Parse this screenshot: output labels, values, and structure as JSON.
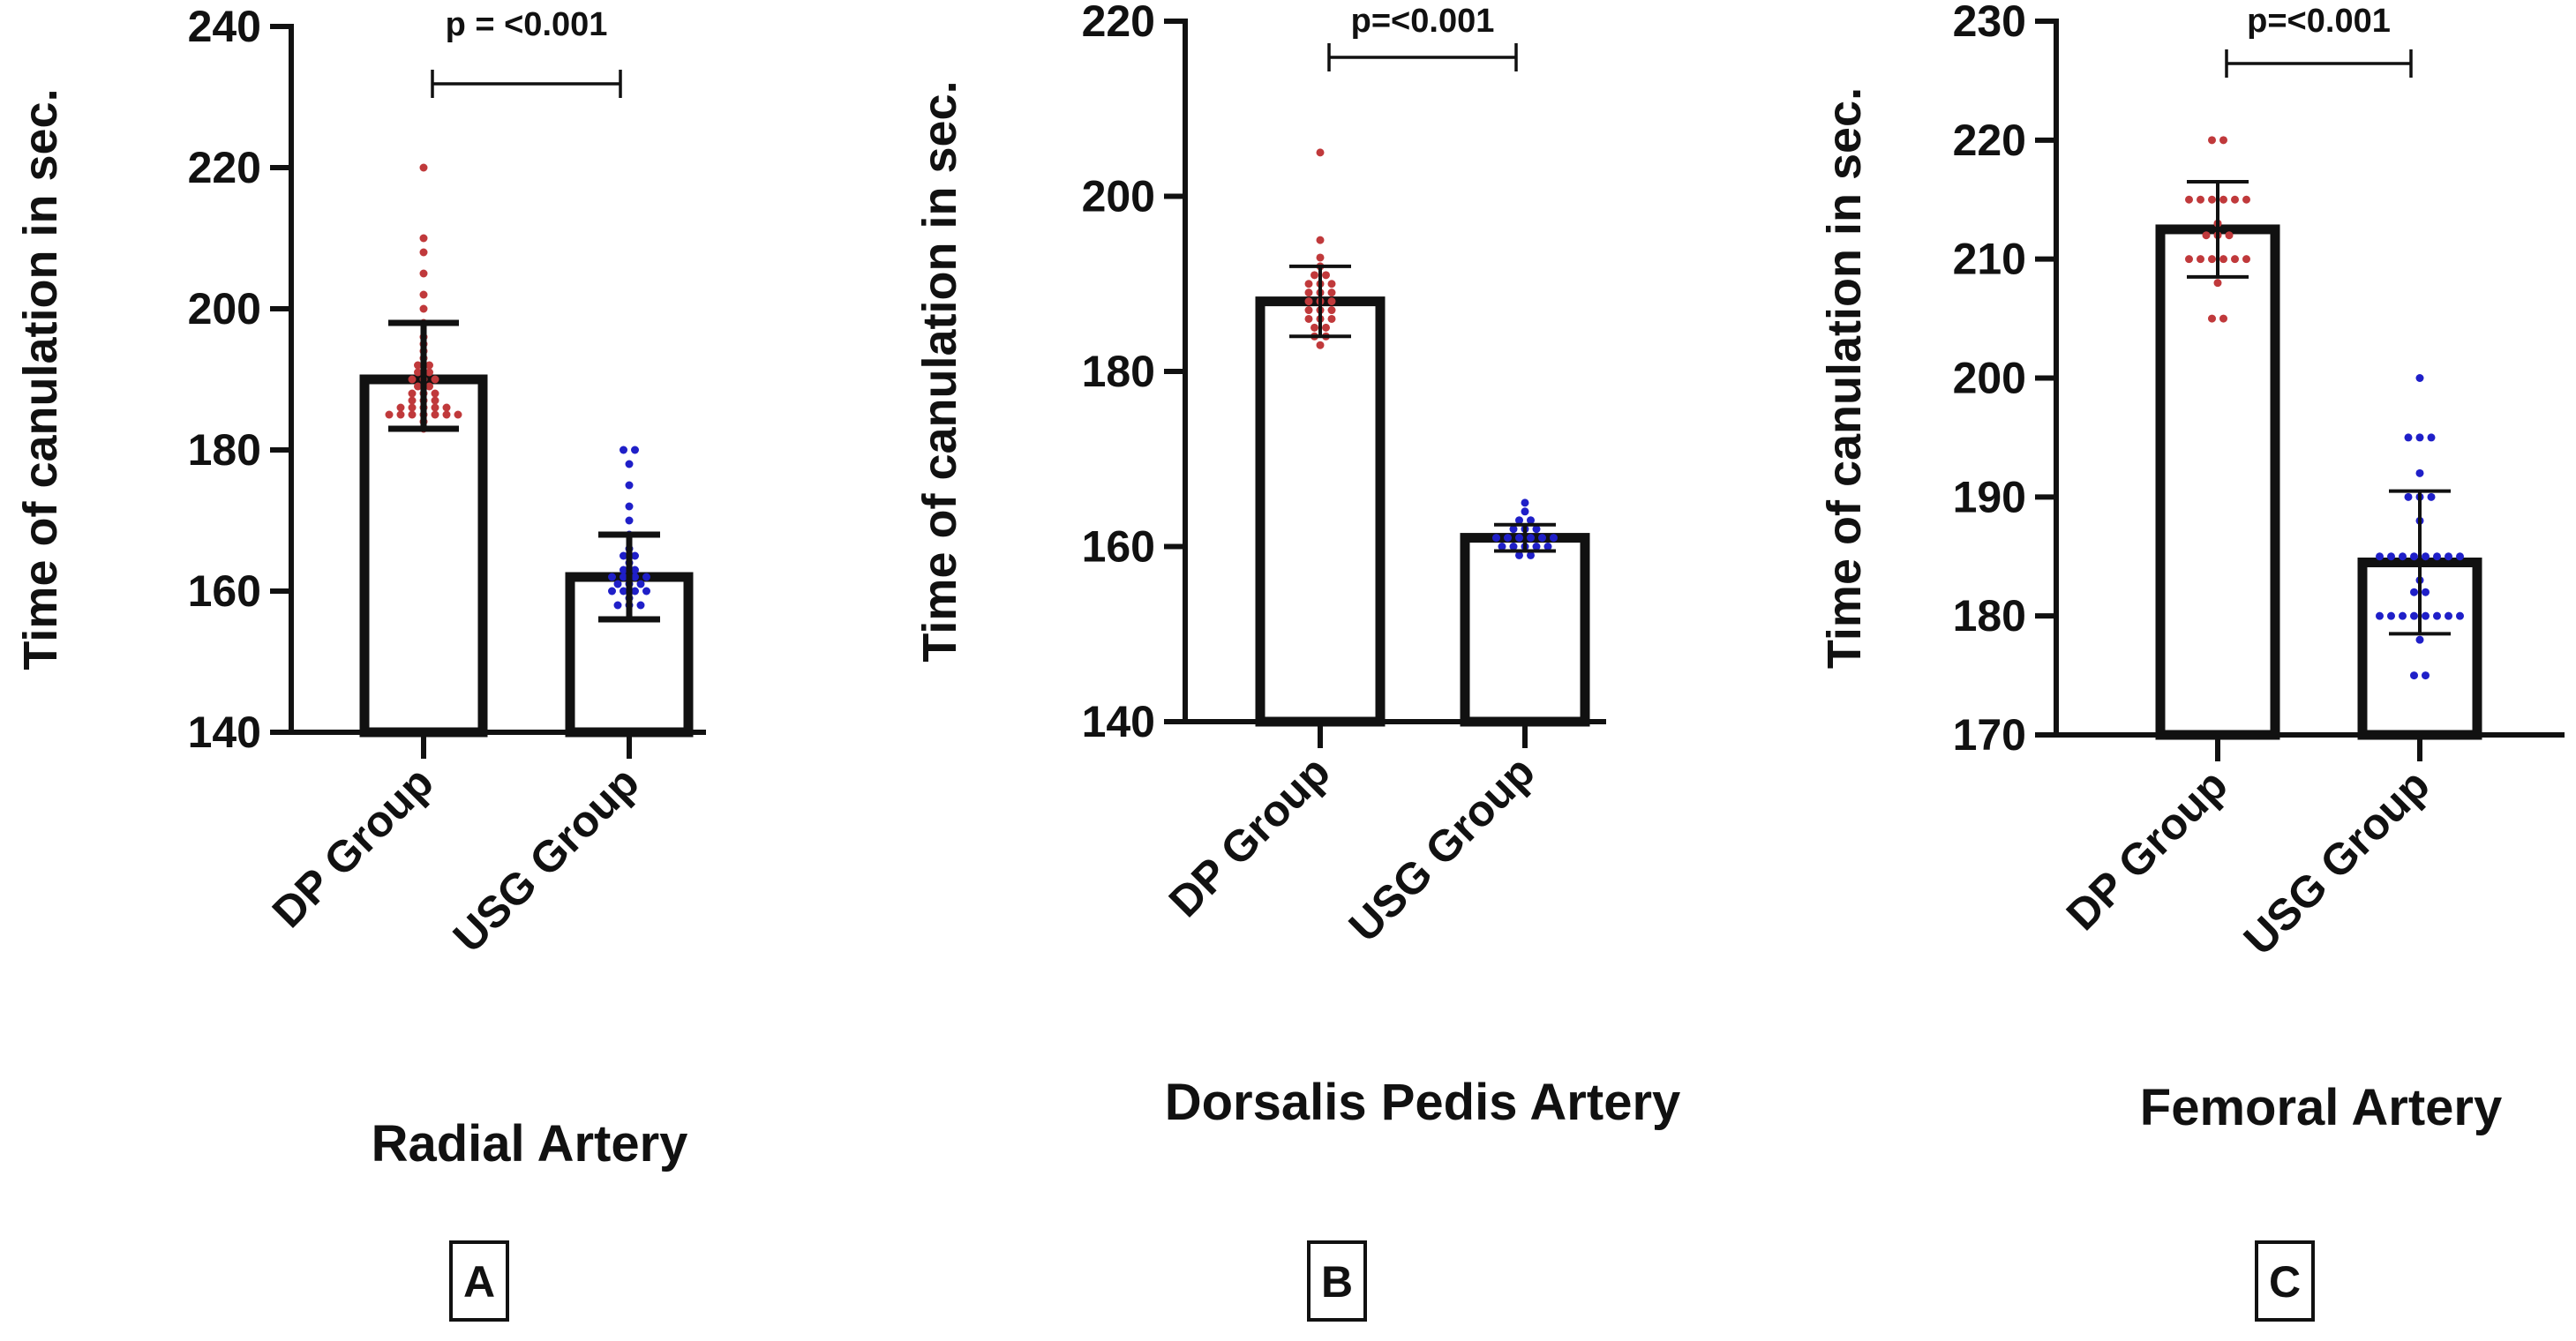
{
  "colors": {
    "axis": "#111111",
    "bar_fill": "#ffffff",
    "dp_points": "#c0393b",
    "usg_points": "#1f1fc8"
  },
  "chart_data": [
    {
      "type": "bar",
      "panel": "A",
      "title": "Radial Artery",
      "ylabel": "Time of canulation in sec.",
      "xlabel": "",
      "categories": [
        "DP Group",
        "USG Group"
      ],
      "ylim": [
        140,
        240
      ],
      "yticks": [
        140,
        160,
        180,
        200,
        220,
        240
      ],
      "means": [
        190,
        162
      ],
      "error": [
        [
          183,
          198
        ],
        [
          156,
          168
        ]
      ],
      "points": [
        [
          185,
          185,
          185,
          185,
          185,
          185,
          185,
          186,
          186,
          186,
          186,
          187,
          187,
          187,
          188,
          188,
          189,
          189,
          190,
          190,
          190,
          191,
          192,
          192,
          193,
          194,
          195,
          196,
          198,
          200,
          202,
          205,
          208,
          210,
          220,
          183,
          184,
          186,
          188,
          191
        ],
        [
          158,
          158,
          159,
          160,
          160,
          160,
          161,
          161,
          161,
          162,
          162,
          162,
          163,
          163,
          164,
          165,
          165,
          166,
          168,
          170,
          172,
          175,
          178,
          180,
          180,
          158,
          160,
          162
        ]
      ],
      "comparison": {
        "label": "p = <0.001",
        "between": [
          0,
          1
        ]
      },
      "grid": false
    },
    {
      "type": "bar",
      "panel": "B",
      "title": "Dorsalis Pedis Artery",
      "ylabel": "Time of canulation in sec.",
      "xlabel": "",
      "categories": [
        "DP Group",
        "USG Group"
      ],
      "ylim": [
        140,
        220
      ],
      "yticks": [
        140,
        160,
        180,
        200,
        220
      ],
      "means": [
        188,
        161
      ],
      "error": [
        [
          184,
          192
        ],
        [
          159.5,
          162.5
        ]
      ],
      "points": [
        [
          183,
          184,
          184,
          185,
          185,
          186,
          186,
          186,
          187,
          187,
          187,
          188,
          188,
          188,
          189,
          189,
          189,
          190,
          190,
          190,
          191,
          191,
          192,
          193,
          195,
          205
        ],
        [
          159,
          159,
          160,
          160,
          160,
          160,
          161,
          161,
          161,
          161,
          161,
          162,
          162,
          162,
          163,
          163,
          164,
          165,
          160,
          161
        ]
      ],
      "comparison": {
        "label": "p=<0.001",
        "between": [
          0,
          1
        ]
      },
      "grid": false
    },
    {
      "type": "bar",
      "panel": "C",
      "title": "Femoral Artery",
      "ylabel": "Time of canulation in sec.",
      "xlabel": "",
      "categories": [
        "DP Group",
        "USG Group"
      ],
      "ylim": [
        170,
        230
      ],
      "yticks": [
        170,
        180,
        190,
        200,
        210,
        220,
        230
      ],
      "means": [
        212.5,
        184.5
      ],
      "error": [
        [
          208.5,
          216.5
        ],
        [
          178.5,
          190.5
        ]
      ],
      "points": [
        [
          205,
          205,
          208,
          210,
          210,
          210,
          210,
          210,
          210,
          212,
          212,
          212,
          213,
          215,
          215,
          215,
          215,
          215,
          215,
          220,
          220
        ],
        [
          175,
          175,
          178,
          180,
          180,
          180,
          180,
          180,
          180,
          180,
          180,
          182,
          182,
          183,
          185,
          185,
          185,
          185,
          185,
          185,
          185,
          185,
          188,
          190,
          190,
          190,
          192,
          195,
          195,
          195,
          200
        ]
      ],
      "comparison": {
        "label": "p=<0.001",
        "between": [
          0,
          1
        ]
      },
      "grid": false
    }
  ]
}
